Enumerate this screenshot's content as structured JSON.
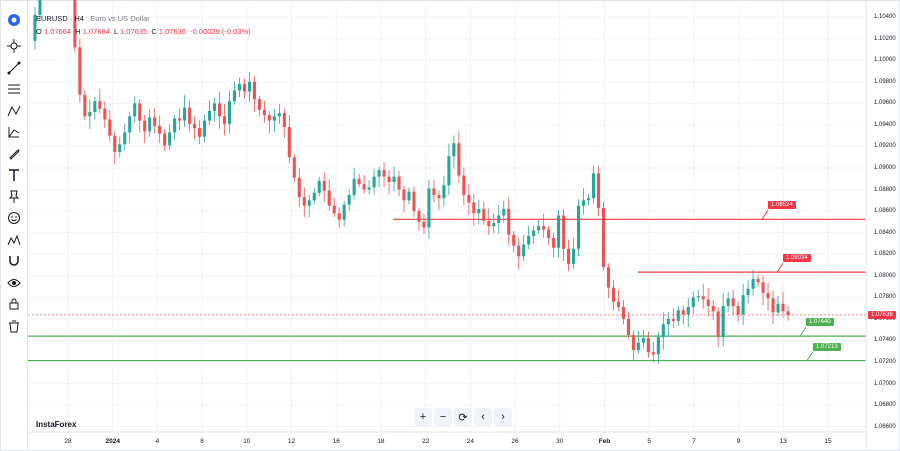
{
  "header": {
    "symbol": "EURUSD · H4",
    "description": "Euro vs US Dollar",
    "o_label": "O",
    "o_value": "1.07664",
    "h_label": "H",
    "h_value": "1.07664",
    "l_label": "L",
    "l_value": "1.07635",
    "c_label": "C",
    "c_value": "1.07636",
    "change": "-0.00029 (-0.03%)"
  },
  "toolbar": {
    "items": [
      "crosshair-icon",
      "trend-line-icon",
      "fib-icon",
      "pattern-icon",
      "prediction-icon",
      "brush-icon",
      "text-icon",
      "pin-icon",
      "emoji-icon",
      "measure-icon",
      "magnet-icon",
      "eye-lock-icon",
      "lock-icon",
      "trash-icon"
    ]
  },
  "navigation": {
    "zoom_in": "+",
    "zoom_out": "−",
    "reset": "⟳",
    "left": "‹",
    "right": "›"
  },
  "watermark": "InstaForex",
  "colors": {
    "up": "#26a69a",
    "down": "#ef5350",
    "resistance": "#f23645",
    "support": "#4caf50",
    "current": "#f23645"
  },
  "chart_data": {
    "type": "candlestick",
    "symbol": "EURUSD",
    "timeframe": "H4",
    "x_ticks": [
      "28",
      "2024",
      "4",
      "8",
      "10",
      "12",
      "16",
      "18",
      "22",
      "24",
      "26",
      "30",
      "Feb",
      "5",
      "7",
      "9",
      "13",
      "15"
    ],
    "y_ticks": [
      "1.10400",
      "1.10200",
      "1.10000",
      "1.09800",
      "1.09600",
      "1.09400",
      "1.09200",
      "1.09000",
      "1.08800",
      "1.08600",
      "1.08400",
      "1.08200",
      "1.08000",
      "1.07800",
      "1.07600",
      "1.07400",
      "1.07200",
      "1.07000",
      "1.06800",
      "1.06600"
    ],
    "ylim": [
      1.0655,
      1.1055
    ],
    "current_price": "1.07636",
    "levels": [
      {
        "label": "1.08524",
        "value": 1.08524,
        "kind": "resistance"
      },
      {
        "label": "1.08034",
        "value": 1.08034,
        "kind": "resistance"
      },
      {
        "label": "1.07440",
        "value": 1.0744,
        "kind": "support"
      },
      {
        "label": "1.07213",
        "value": 1.07213,
        "kind": "support"
      }
    ],
    "closes": [
      1.1018,
      1.1042,
      1.1072,
      1.1108,
      1.1089,
      1.1078,
      1.1092,
      1.1101,
      1.1085,
      1.1012,
      1.0968,
      1.0948,
      1.0952,
      1.0962,
      1.0955,
      1.0945,
      1.093,
      1.0915,
      1.0922,
      1.0933,
      1.0948,
      1.096,
      1.0944,
      1.0934,
      1.0947,
      1.0939,
      1.0932,
      1.0921,
      1.0933,
      1.0946,
      1.0944,
      1.0956,
      1.0941,
      1.0937,
      1.0929,
      1.0944,
      1.0953,
      1.096,
      1.0948,
      1.0941,
      1.0962,
      1.0972,
      1.0978,
      1.0971,
      1.098,
      1.0964,
      1.0954,
      1.0949,
      1.0944,
      1.0948,
      1.0951,
      1.0938,
      1.091,
      1.0891,
      1.0873,
      1.0865,
      1.087,
      1.0877,
      1.0888,
      1.0879,
      1.0865,
      1.0858,
      1.0852,
      1.0866,
      1.0875,
      1.089,
      1.0885,
      1.088,
      1.0882,
      1.0892,
      1.0898,
      1.0892,
      1.0887,
      1.0892,
      1.088,
      1.087,
      1.0878,
      1.086,
      1.085,
      1.0845,
      1.0881,
      1.0875,
      1.0872,
      1.0884,
      1.0911,
      1.0923,
      1.0893,
      1.0875,
      1.0868,
      1.0858,
      1.0862,
      1.0851,
      1.0846,
      1.0849,
      1.0856,
      1.0862,
      1.0838,
      1.0828,
      1.0818,
      1.0829,
      1.0837,
      1.0842,
      1.0846,
      1.0843,
      1.0835,
      1.0826,
      1.0856,
      1.0825,
      1.0811,
      1.0825,
      1.0865,
      1.087,
      1.0872,
      1.0895,
      1.0863,
      1.0808,
      1.0789,
      1.0776,
      1.0771,
      1.076,
      1.0745,
      1.0731,
      1.0738,
      1.0742,
      1.0729,
      1.0727,
      1.0743,
      1.0755,
      1.076,
      1.0758,
      1.0768,
      1.0764,
      1.0771,
      1.078,
      1.0781,
      1.0778,
      1.0772,
      1.0767,
      1.0743,
      1.0772,
      1.0779,
      1.0772,
      1.0764,
      1.0782,
      1.0788,
      1.0797,
      1.0794,
      1.0784,
      1.0779,
      1.0766,
      1.0774,
      1.0767,
      1.07636
    ]
  }
}
